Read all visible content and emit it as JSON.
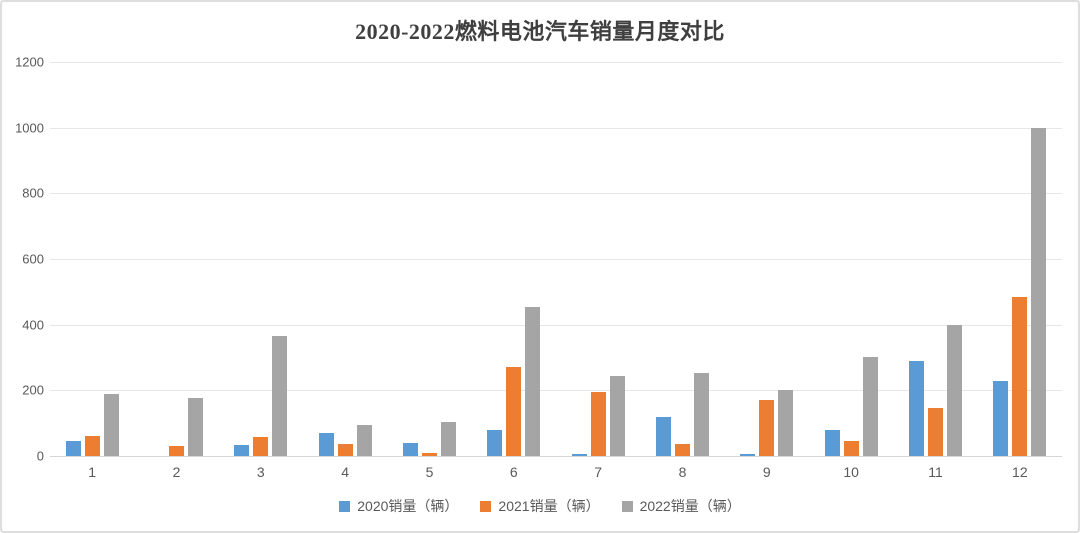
{
  "title": "2020-2022燃料电池汽车销量月度对比",
  "chart_data": {
    "type": "bar",
    "title": "2020-2022燃料电池汽车销量月度对比",
    "categories": [
      "1",
      "2",
      "3",
      "4",
      "5",
      "6",
      "7",
      "8",
      "9",
      "10",
      "11",
      "12"
    ],
    "series": [
      {
        "name": "2020销量（辆）",
        "color": "#5B9BD5",
        "values": [
          45,
          0,
          35,
          70,
          40,
          80,
          7,
          120,
          7,
          80,
          288,
          228
        ]
      },
      {
        "name": "2021销量（辆）",
        "color": "#ED7D31",
        "values": [
          62,
          30,
          58,
          36,
          10,
          270,
          195,
          38,
          172,
          47,
          145,
          485
        ]
      },
      {
        "name": "2022销量（辆）",
        "color": "#A5A5A5",
        "values": [
          190,
          178,
          366,
          94,
          103,
          453,
          243,
          253,
          200,
          300,
          400,
          1000
        ]
      }
    ],
    "xlabel": "",
    "ylabel": "",
    "ylim": [
      0,
      1200
    ],
    "yticks": [
      0,
      200,
      400,
      600,
      800,
      1000,
      1200
    ],
    "grid": true,
    "legend_position": "bottom"
  },
  "style_colors": {
    "title_text": "#3f3f3f",
    "axis_text": "#595959",
    "gridline": "#e7e7e7",
    "axis_line": "#d6d6d6",
    "card_border": "#dedede",
    "background": "#ffffff"
  }
}
